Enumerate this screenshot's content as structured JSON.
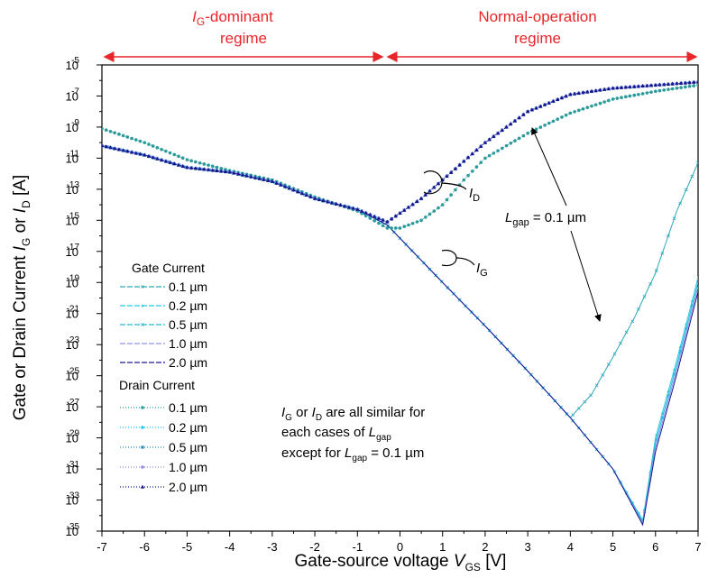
{
  "chart_data": {
    "type": "line",
    "title": "",
    "xlabel": "Gate-source voltage V_GS [V]",
    "ylabel": "Gate or Drain Current I_G or I_D [A]",
    "xlim": [
      -7,
      7
    ],
    "ylim_log10": [
      -35,
      -5
    ],
    "y_scale": "log",
    "x_ticks": [
      -7,
      -6,
      -5,
      -4,
      -3,
      -2,
      -1,
      0,
      1,
      2,
      3,
      4,
      5,
      6,
      7
    ],
    "y_tick_exponents": [
      -35,
      -33,
      -31,
      -29,
      -27,
      -25,
      -23,
      -21,
      -19,
      -17,
      -15,
      -13,
      -11,
      -9,
      -7,
      -5
    ],
    "regimes": [
      {
        "label_main": "I",
        "label_sub": "G",
        "label_rest": "-dominant",
        "label_line2": "regime",
        "x_range": [
          -7,
          -0.3
        ]
      },
      {
        "label_main": "Normal-operation",
        "label_line2": "regime",
        "x_range": [
          -0.3,
          7
        ]
      }
    ],
    "series": [
      {
        "name": "Gate Current 0.1 µm",
        "group": "gate",
        "color": "#2aa8b8",
        "marker": "x",
        "x": [
          -7,
          -6,
          -5,
          -4,
          -3,
          -2,
          -1,
          -0.3,
          1,
          2,
          3,
          4,
          4.5,
          5,
          5.5,
          6,
          6.5,
          7
        ],
        "log10_y": [
          -10.2,
          -10.8,
          -11.6,
          -11.9,
          -12.5,
          -13.6,
          -14.3,
          -15.3,
          -19.0,
          -21.8,
          -24.7,
          -27.7,
          -26.2,
          -23.8,
          -21.3,
          -18.4,
          -14.4,
          -11.3
        ]
      },
      {
        "name": "Gate Current 0.2 µm",
        "group": "gate",
        "color": "#29c8e0",
        "marker": "tri",
        "x": [
          -7,
          -6,
          -5,
          -4,
          -3,
          -2,
          -1,
          -0.3,
          1,
          2,
          3,
          4,
          5,
          5.7,
          6,
          6.5,
          7
        ],
        "log10_y": [
          -10.2,
          -10.8,
          -11.6,
          -11.9,
          -12.5,
          -13.6,
          -14.3,
          -15.3,
          -19.0,
          -21.8,
          -24.7,
          -27.7,
          -31.0,
          -34.3,
          -29.0,
          -24.0,
          -18.7
        ]
      },
      {
        "name": "Gate Current 0.5 µm",
        "group": "gate",
        "color": "#20b8d8",
        "marker": "x",
        "x": [
          -7,
          -6,
          -5,
          -4,
          -3,
          -2,
          -1,
          -0.3,
          1,
          2,
          3,
          4,
          5,
          5.7,
          6,
          6.5,
          7
        ],
        "log10_y": [
          -10.2,
          -10.8,
          -11.6,
          -11.9,
          -12.5,
          -13.6,
          -14.3,
          -15.3,
          -19.0,
          -21.8,
          -24.7,
          -27.7,
          -31.0,
          -34.4,
          -29.3,
          -24.3,
          -19.0
        ]
      },
      {
        "name": "Gate Current 1.0 µm",
        "group": "gate",
        "color": "#9090e8",
        "marker": "line",
        "x": [
          -7,
          -6,
          -5,
          -4,
          -3,
          -2,
          -1,
          -0.3,
          1,
          2,
          3,
          4,
          5,
          5.7,
          6,
          6.5,
          7
        ],
        "log10_y": [
          -10.2,
          -10.8,
          -11.6,
          -11.9,
          -12.5,
          -13.6,
          -14.3,
          -15.3,
          -19.0,
          -21.8,
          -24.7,
          -27.7,
          -31.0,
          -34.5,
          -29.6,
          -24.6,
          -19.3
        ]
      },
      {
        "name": "Gate Current 2.0 µm",
        "group": "gate",
        "color": "#1a1a90",
        "marker": "line",
        "x": [
          -7,
          -6,
          -5,
          -4,
          -3,
          -2,
          -1,
          -0.3,
          1,
          2,
          3,
          4,
          5,
          5.7,
          6,
          6.5,
          7
        ],
        "log10_y": [
          -10.2,
          -10.8,
          -11.6,
          -11.9,
          -12.5,
          -13.6,
          -14.3,
          -15.3,
          -19.0,
          -21.8,
          -24.7,
          -27.7,
          -31.0,
          -34.6,
          -29.9,
          -24.9,
          -19.6
        ]
      },
      {
        "name": "Drain Current 0.1 µm",
        "group": "drain",
        "color": "#2a9a9a",
        "marker": "dot",
        "x": [
          -7,
          -6,
          -5,
          -4,
          -3,
          -2,
          -1,
          -0.3,
          0,
          0.5,
          1,
          1.5,
          2,
          3,
          4,
          5,
          6,
          7
        ],
        "log10_y": [
          -9.1,
          -10.0,
          -11.1,
          -11.8,
          -12.4,
          -13.5,
          -14.4,
          -15.5,
          -15.5,
          -15.0,
          -14.0,
          -12.4,
          -11.0,
          -9.4,
          -8.1,
          -7.2,
          -6.7,
          -6.3
        ]
      },
      {
        "name": "Drain Current 0.2 µm",
        "group": "drain",
        "color": "#22c8e8",
        "marker": "diamond",
        "x": [
          -7,
          -6,
          -5,
          -4,
          -3,
          -2,
          -1,
          -0.3,
          0.5,
          1,
          2,
          3,
          4,
          5,
          6,
          7
        ],
        "log10_y": [
          -10.2,
          -10.8,
          -11.6,
          -11.9,
          -12.5,
          -13.6,
          -14.3,
          -15.1,
          -13.6,
          -12.4,
          -10.0,
          -8.0,
          -6.9,
          -6.5,
          -6.3,
          -6.1
        ]
      },
      {
        "name": "Drain Current 0.5 µm",
        "group": "drain",
        "color": "#2090c8",
        "marker": "square",
        "x": [
          -7,
          -6,
          -5,
          -4,
          -3,
          -2,
          -1,
          -0.3,
          0.5,
          1,
          2,
          3,
          4,
          5,
          6,
          7
        ],
        "log10_y": [
          -10.2,
          -10.8,
          -11.6,
          -11.9,
          -12.5,
          -13.6,
          -14.3,
          -15.1,
          -13.6,
          -12.4,
          -10.0,
          -8.0,
          -6.9,
          -6.5,
          -6.3,
          -6.1
        ]
      },
      {
        "name": "Drain Current 1.0 µm",
        "group": "drain",
        "color": "#9a8ae8",
        "marker": "dot",
        "x": [
          -7,
          -6,
          -5,
          -4,
          -3,
          -2,
          -1,
          -0.3,
          0.5,
          1,
          2,
          3,
          4,
          5,
          6,
          7
        ],
        "log10_y": [
          -10.2,
          -10.8,
          -11.6,
          -11.9,
          -12.5,
          -13.6,
          -14.3,
          -15.1,
          -13.6,
          -12.4,
          -10.0,
          -8.0,
          -6.9,
          -6.5,
          -6.3,
          -6.1
        ]
      },
      {
        "name": "Drain Current 2.0 µm",
        "group": "drain",
        "color": "#14148a",
        "marker": "triangle",
        "x": [
          -7,
          -6,
          -5,
          -4,
          -3,
          -2,
          -1,
          -0.3,
          0.5,
          1,
          2,
          3,
          4,
          5,
          6,
          7
        ],
        "log10_y": [
          -10.2,
          -10.8,
          -11.6,
          -11.9,
          -12.5,
          -13.6,
          -14.3,
          -15.1,
          -13.6,
          -12.4,
          -10.0,
          -8.0,
          -6.9,
          -6.5,
          -6.3,
          -6.1
        ]
      }
    ],
    "legend": {
      "position": "lower-left",
      "gate_title": "Gate Current",
      "drain_title": "Drain Current",
      "entries": [
        "0.1 µm",
        "0.2 µm",
        "0.5 µm",
        "1.0 µm",
        "2.0 µm"
      ]
    },
    "annotations": {
      "id_label": {
        "main": "I",
        "sub": "D"
      },
      "ig_label": {
        "main": "I",
        "sub": "G"
      },
      "lgap_label": {
        "main": "L",
        "sub": "gap",
        "rest": " = 0.1 µm"
      },
      "note_line1_a": "I",
      "note_line1_a_sub": "G",
      "note_line1_b": " or ",
      "note_line1_c": "I",
      "note_line1_c_sub": "D",
      "note_line1_d": " are all similar for",
      "note_line2_a": "each cases of ",
      "note_line2_b": "L",
      "note_line2_b_sub": "gap",
      "note_line3_a": "except for ",
      "note_line3_b": "L",
      "note_line3_b_sub": "gap",
      "note_line3_c": " = 0.1 µm"
    },
    "axis_labels": {
      "x_main": "Gate-source voltage ",
      "x_var": "V",
      "x_sub": "GS",
      "x_unit": " [V]",
      "y_a": "Gate or Drain Current ",
      "y_b": "I",
      "y_b_sub": "G",
      "y_c": " or ",
      "y_d": "I",
      "y_d_sub": "D",
      "y_e": " [A]"
    }
  }
}
